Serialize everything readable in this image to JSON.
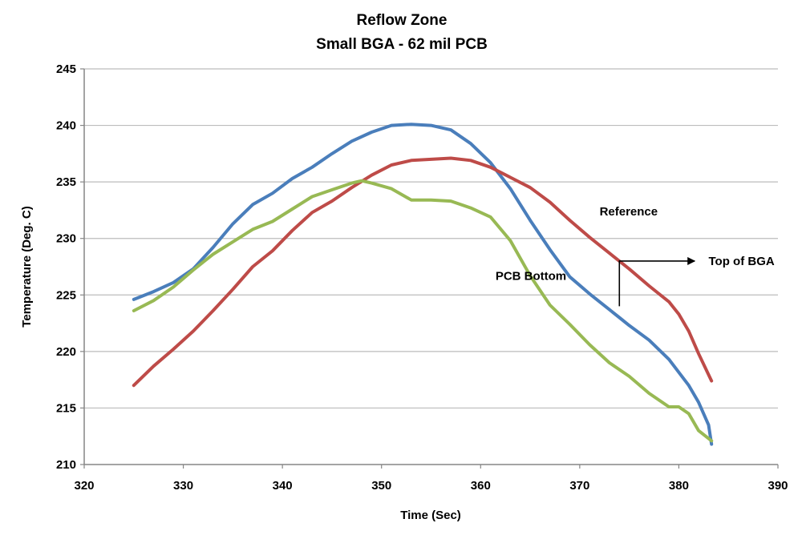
{
  "chart_data": {
    "type": "line",
    "title": [
      "Reflow Zone",
      "Small BGA - 62 mil PCB"
    ],
    "xlabel": "Time (Sec)",
    "ylabel": "Temperature (Deg. C)",
    "xlim": [
      320,
      390
    ],
    "ylim": [
      210,
      245
    ],
    "xticks": [
      320,
      330,
      340,
      350,
      360,
      370,
      380,
      390
    ],
    "yticks": [
      210,
      215,
      220,
      225,
      230,
      235,
      240,
      245
    ],
    "grid": "horizontal",
    "legend": "none",
    "series": [
      {
        "name": "Top of BGA",
        "color": "#4a7ebb",
        "x": [
          325,
          327,
          329,
          331,
          333,
          335,
          337,
          339,
          341,
          343,
          345,
          347,
          349,
          351,
          353,
          355,
          357,
          359,
          361,
          363,
          365,
          367,
          369,
          371,
          373,
          374,
          375,
          377,
          379,
          381,
          382,
          383,
          383.3
        ],
        "y": [
          224.6,
          225.3,
          226.1,
          227.3,
          229.2,
          231.3,
          233.0,
          234.0,
          235.3,
          236.3,
          237.5,
          238.6,
          239.4,
          240.0,
          240.1,
          240.0,
          239.6,
          238.4,
          236.7,
          234.4,
          231.6,
          229.0,
          226.6,
          225.1,
          223.7,
          223.0,
          222.3,
          221.0,
          219.3,
          217.0,
          215.5,
          213.5,
          211.8
        ]
      },
      {
        "name": "Reference",
        "color": "#be4b48",
        "x": [
          325,
          327,
          329,
          331,
          333,
          335,
          337,
          339,
          341,
          343,
          345,
          347,
          349,
          351,
          353,
          355,
          357,
          359,
          361,
          363,
          365,
          367,
          369,
          371,
          373,
          375,
          377,
          379,
          380,
          381,
          382,
          383.3
        ],
        "y": [
          217.0,
          218.7,
          220.2,
          221.8,
          223.6,
          225.5,
          227.5,
          228.9,
          230.7,
          232.3,
          233.3,
          234.5,
          235.6,
          236.5,
          236.9,
          237.0,
          237.1,
          236.9,
          236.3,
          235.4,
          234.5,
          233.2,
          231.6,
          230.1,
          228.7,
          227.3,
          225.8,
          224.4,
          223.3,
          221.8,
          219.8,
          217.4
        ]
      },
      {
        "name": "PCB Bottom",
        "color": "#98b954",
        "x": [
          325,
          327,
          329,
          331,
          333,
          335,
          337,
          339,
          341,
          343,
          345,
          347,
          348,
          349,
          351,
          353,
          355,
          357,
          359,
          361,
          363,
          365,
          367,
          369,
          371,
          373,
          375,
          377,
          379,
          380,
          381,
          382,
          383.3
        ],
        "y": [
          223.6,
          224.5,
          225.7,
          227.2,
          228.6,
          229.7,
          230.8,
          231.5,
          232.6,
          233.7,
          234.3,
          234.9,
          235.1,
          234.9,
          234.4,
          233.4,
          233.4,
          233.3,
          232.7,
          231.9,
          229.8,
          226.7,
          224.1,
          222.4,
          220.6,
          219.0,
          217.8,
          216.3,
          215.1,
          215.1,
          214.5,
          213.0,
          212.1
        ]
      }
    ],
    "annotations": [
      {
        "text": "Reference",
        "x": 372,
        "y": 232.4
      },
      {
        "text": "PCB Bottom",
        "x": 361.5,
        "y": 226.7
      },
      {
        "text": "Top of BGA",
        "x": 383,
        "y": 228.0,
        "arrow_from": [
          374,
          224.0
        ],
        "arrow_corner": [
          374,
          228.0
        ],
        "arrow_to": [
          381.6,
          228.0
        ]
      }
    ]
  }
}
